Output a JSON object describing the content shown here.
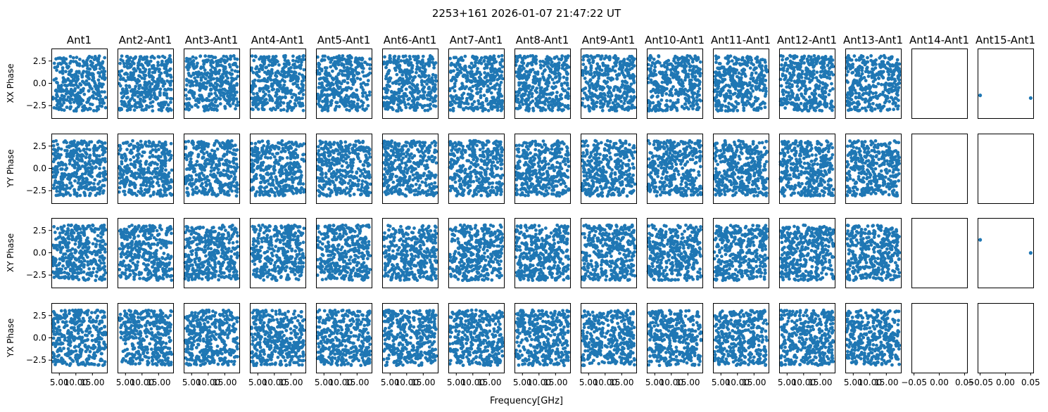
{
  "chart_data": {
    "type": "scatter",
    "title": "2253+161 2026-01-07 21:47:22 UT",
    "xlabel": "Frequency[GHz]",
    "columns": [
      "Ant1",
      "Ant2-Ant1",
      "Ant3-Ant1",
      "Ant4-Ant1",
      "Ant5-Ant1",
      "Ant6-Ant1",
      "Ant7-Ant1",
      "Ant8-Ant1",
      "Ant9-Ant1",
      "Ant10-Ant1",
      "Ant11-Ant1",
      "Ant12-Ant1",
      "Ant13-Ant1",
      "Ant14-Ant1",
      "Ant15-Ant1"
    ],
    "rows": [
      "XX Phase",
      "YY Phase",
      "XY Phase",
      "YX Phase"
    ],
    "ylim": [
      -3.9,
      3.9
    ],
    "yticks": [
      -2.5,
      0.0,
      2.5
    ],
    "ytick_labels": [
      "−2.5",
      "0.0",
      "2.5"
    ],
    "freq_xlim": [
      2.6,
      19.4
    ],
    "freq_xticks": [
      5.0,
      10.0,
      15.0
    ],
    "freq_xtick_labels": [
      "5.00",
      "10.00",
      "15.00"
    ],
    "empty_xlim": [
      -0.055,
      0.055
    ],
    "empty_xticks": [
      -0.05,
      0.0,
      0.05
    ],
    "empty_xtick_labels": [
      "−0.05",
      "0.00",
      "0.05"
    ],
    "freq_range_ghz": [
      3.0,
      19.0
    ],
    "phase_range_rad": [
      -3.1,
      3.1
    ],
    "points_per_panel": 380,
    "marker_color": "#1f77b4",
    "single_points": {
      "Ant15-Ant1|XX Phase": [
        [
          -0.05,
          -1.35
        ],
        [
          0.05,
          -1.65
        ]
      ],
      "Ant15-Ant1|XY Phase": [
        [
          -0.05,
          1.45
        ],
        [
          0.05,
          -0.02
        ]
      ]
    }
  }
}
